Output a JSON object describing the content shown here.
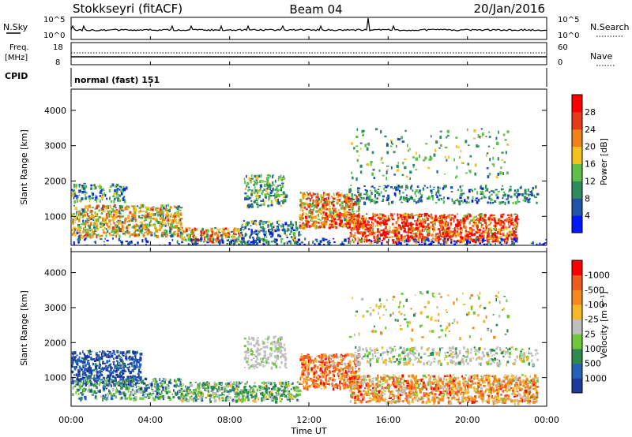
{
  "header": {
    "station": "Stokkseyri (fitACF)",
    "beam": "Beam 04",
    "date": "20/Jan/2016"
  },
  "nsky_panel": {
    "left_label": "N.Sky",
    "right_label": "N.Search",
    "left_ticks": [
      "10^5",
      "10^0"
    ],
    "right_ticks": [
      "10^5",
      "10^0"
    ]
  },
  "freq_panel": {
    "left_label_1": "Freq.",
    "left_label_2": "[MHz]",
    "right_label": "Nave",
    "left_ticks": [
      "18",
      "8"
    ],
    "right_ticks": [
      "60",
      "0"
    ]
  },
  "cpid_panel": {
    "label": "CPID",
    "mode": "normal (fast) 151"
  },
  "chart_data": [
    {
      "type": "heatmap",
      "name": "power",
      "ylabel": "Slant Range [km]",
      "ylim": [
        180,
        4600
      ],
      "yticks": [
        "1000",
        "2000",
        "3000",
        "4000"
      ],
      "colorbar_label": "Power [dB]",
      "colorbar_ticks": [
        "4",
        "8",
        "12",
        "16",
        "20",
        "24",
        "28"
      ],
      "colorbar_colors": [
        "#0018ff",
        "#1f55a8",
        "#2f8a5e",
        "#5ec04a",
        "#f4c020",
        "#f08018",
        "#e83a18",
        "#ff0000"
      ],
      "legend_position": "right"
    },
    {
      "type": "heatmap",
      "name": "velocity",
      "ylabel": "Slant Range [km]",
      "ylim": [
        180,
        4600
      ],
      "yticks": [
        "1000",
        "2000",
        "3000",
        "4000"
      ],
      "colorbar_label": "Velocity [m s⁻¹]",
      "colorbar_ticks": [
        "1000",
        "500",
        "100",
        "25",
        "-25",
        "-100",
        "-500",
        "-1000"
      ],
      "colorbar_colors": [
        "#1a3a9c",
        "#2462b8",
        "#2e8a4e",
        "#6cc83a",
        "#bfbfbf",
        "#f5b829",
        "#f5871f",
        "#ef5a1e",
        "#ff0000"
      ],
      "legend_position": "right"
    }
  ],
  "x_axis": {
    "label": "Time UT",
    "ticks": [
      "00:00",
      "04:00",
      "08:00",
      "12:00",
      "16:00",
      "20:00",
      "00:00"
    ]
  }
}
